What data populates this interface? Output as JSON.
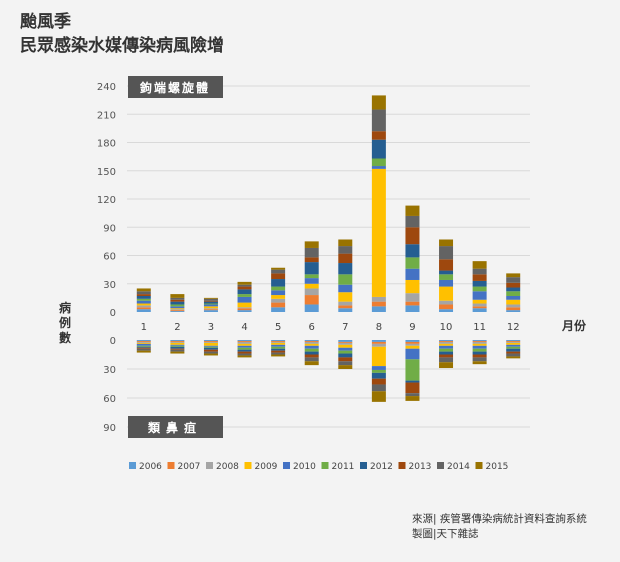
{
  "header": {
    "title_line1": "颱風季",
    "title_line2": "民眾感染水媒傳染病風險增"
  },
  "source": {
    "line1": "來源| 疾管署傳染病統計資料查詢系統",
    "line2": "製圖|天下雜誌"
  },
  "colors": {
    "background": "#f3f3f3",
    "panel_label_bg": "#555555",
    "grid": "#d9d9d9"
  },
  "chart_data": [
    {
      "type": "bar",
      "stacked": true,
      "panel_label": "鉤端螺旋體",
      "ylabel": "病例數",
      "xlabel": "月份",
      "categories": [
        "1",
        "2",
        "3",
        "4",
        "5",
        "6",
        "7",
        "8",
        "9",
        "10",
        "11",
        "12"
      ],
      "yticks": [
        0,
        30,
        60,
        90,
        120,
        150,
        180,
        210,
        240
      ],
      "ylim": [
        0,
        240
      ],
      "grid": true,
      "series": [
        {
          "name": "2006",
          "color": "#5b9bd5",
          "values": [
            3,
            1,
            2,
            2,
            5,
            8,
            4,
            6,
            7,
            3,
            4,
            2
          ]
        },
        {
          "name": "2007",
          "color": "#ed7d31",
          "values": [
            2,
            1,
            1,
            2,
            5,
            10,
            3,
            5,
            4,
            5,
            2,
            3
          ]
        },
        {
          "name": "2008",
          "color": "#a5a5a5",
          "values": [
            2,
            1,
            1,
            1,
            4,
            7,
            4,
            5,
            9,
            4,
            3,
            3
          ]
        },
        {
          "name": "2009",
          "color": "#ffc000",
          "values": [
            2,
            1,
            2,
            5,
            4,
            5,
            10,
            136,
            14,
            15,
            4,
            5
          ]
        },
        {
          "name": "2010",
          "color": "#4472c4",
          "values": [
            3,
            2,
            2,
            6,
            5,
            6,
            8,
            3,
            12,
            7,
            9,
            4
          ]
        },
        {
          "name": "2011",
          "color": "#70ad47",
          "values": [
            2,
            2,
            1,
            3,
            4,
            4,
            11,
            8,
            12,
            6,
            5,
            5
          ]
        },
        {
          "name": "2012",
          "color": "#255e91",
          "values": [
            3,
            3,
            2,
            5,
            8,
            13,
            12,
            20,
            14,
            4,
            6,
            4
          ]
        },
        {
          "name": "2013",
          "color": "#9e480e",
          "values": [
            2,
            2,
            1,
            3,
            6,
            5,
            10,
            9,
            18,
            12,
            7,
            5
          ]
        },
        {
          "name": "2014",
          "color": "#636363",
          "values": [
            3,
            2,
            2,
            2,
            4,
            10,
            8,
            23,
            12,
            14,
            6,
            6
          ]
        },
        {
          "name": "2015",
          "color": "#997300",
          "values": [
            3,
            4,
            1,
            3,
            2,
            7,
            7,
            15,
            11,
            7,
            8,
            4
          ]
        }
      ]
    },
    {
      "type": "bar",
      "stacked": true,
      "panel_label": "類鼻疽",
      "categories": [
        "1",
        "2",
        "3",
        "4",
        "5",
        "6",
        "7",
        "8",
        "9",
        "10",
        "11",
        "12"
      ],
      "yticks": [
        0,
        30,
        60,
        90
      ],
      "ylim": [
        0,
        90
      ],
      "direction": "downward",
      "series": [
        {
          "name": "2006",
          "color": "#5b9bd5",
          "values": [
            1,
            1,
            1,
            1,
            1,
            1,
            2,
            2,
            2,
            1,
            1,
            1
          ]
        },
        {
          "name": "2007",
          "color": "#ed7d31",
          "values": [
            1,
            1,
            1,
            1,
            1,
            1,
            1,
            2,
            2,
            1,
            1,
            1
          ]
        },
        {
          "name": "2008",
          "color": "#a5a5a5",
          "values": [
            1,
            1,
            1,
            2,
            1,
            2,
            2,
            3,
            2,
            2,
            2,
            1
          ]
        },
        {
          "name": "2009",
          "color": "#ffc000",
          "values": [
            1,
            2,
            3,
            2,
            2,
            2,
            3,
            20,
            3,
            2,
            2,
            2
          ]
        },
        {
          "name": "2010",
          "color": "#4472c4",
          "values": [
            2,
            1,
            1,
            2,
            2,
            3,
            3,
            4,
            11,
            3,
            3,
            2
          ]
        },
        {
          "name": "2011",
          "color": "#70ad47",
          "values": [
            1,
            1,
            1,
            2,
            2,
            3,
            3,
            3,
            22,
            3,
            3,
            2
          ]
        },
        {
          "name": "2012",
          "color": "#255e91",
          "values": [
            1,
            2,
            2,
            2,
            2,
            3,
            4,
            6,
            2,
            3,
            3,
            3
          ]
        },
        {
          "name": "2013",
          "color": "#9e480e",
          "values": [
            1,
            1,
            2,
            2,
            2,
            3,
            4,
            6,
            11,
            3,
            3,
            2
          ]
        },
        {
          "name": "2014",
          "color": "#636363",
          "values": [
            2,
            2,
            2,
            2,
            2,
            4,
            4,
            7,
            3,
            5,
            4,
            3
          ]
        },
        {
          "name": "2015",
          "color": "#997300",
          "values": [
            2,
            2,
            2,
            2,
            2,
            4,
            4,
            11,
            5,
            6,
            3,
            2
          ]
        }
      ]
    }
  ]
}
